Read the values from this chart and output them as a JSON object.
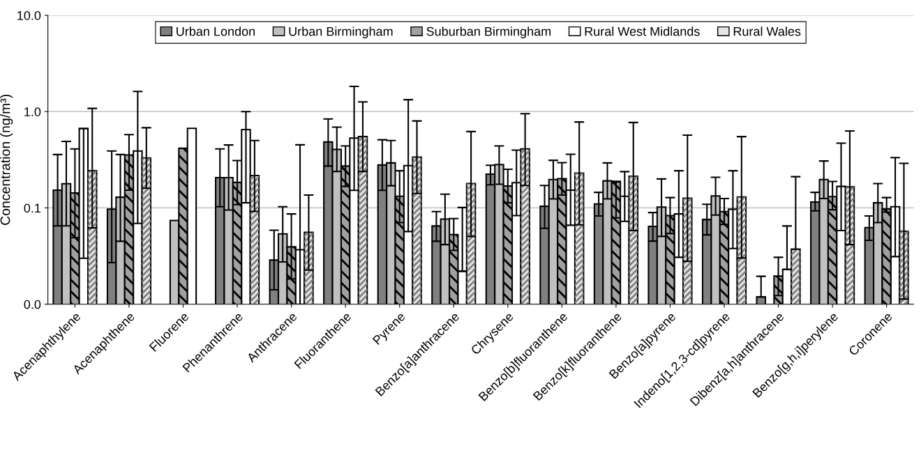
{
  "chart_data": {
    "type": "bar",
    "log": "y",
    "ylabel": "Concentration (ng/m³)",
    "categories": [
      "Acenaphthylene",
      "Acenaphthene",
      "Fluorene",
      "Phenanthrene",
      "Anthracene",
      "Fluoranthene",
      "Pyrene",
      "Benzo[a]anthracene",
      "Chrysene",
      "Benzo[b]fluoranthene",
      "Benzo[k]fluoranthene",
      "Benzo[a]pyrene",
      "Indeno[1,2,3-cd]pyrene",
      "Dibenz[a,h]anthracene",
      "Benzo[g,h,i]perylene",
      "Coronene"
    ],
    "ylim": [
      0.01,
      10
    ],
    "yticks": [
      {
        "value": 0.01,
        "label": "0.0"
      },
      {
        "value": 0.1,
        "label": "0.1"
      },
      {
        "value": 1,
        "label": "1.0"
      },
      {
        "value": 10,
        "label": "10.0"
      }
    ],
    "grid": "y",
    "legend": "top",
    "series": [
      {
        "name": "Urban London",
        "color": "#808080",
        "values": [
          0.153,
          0.097,
          null,
          0.206,
          0.0287,
          0.483,
          0.279,
          0.0649,
          0.224,
          0.104,
          0.11,
          0.0642,
          0.0758,
          0.0119,
          0.115,
          0.0624
        ],
        "errors": [
          [
            0.065,
            0.358
          ],
          [
            0.027,
            0.39
          ],
          null,
          [
            0.103,
            0.41
          ],
          [
            0.0141,
            0.0587
          ],
          [
            0.272,
            0.84
          ],
          [
            0.152,
            0.51
          ],
          [
            0.045,
            0.0915
          ],
          [
            0.174,
            0.277
          ],
          [
            0.0614,
            0.171
          ],
          [
            0.0824,
            0.145
          ],
          [
            0.0452,
            0.0895
          ],
          [
            0.0525,
            0.109
          ],
          [
            0.0119,
            0.0195
          ],
          [
            0.093,
            0.145
          ],
          [
            0.046,
            0.0824
          ]
        ]
      },
      {
        "name": "Urban Birmingham",
        "color": "#c0c0c0",
        "values": [
          0.178,
          0.129,
          0.074,
          0.206,
          0.0537,
          0.405,
          0.293,
          0.0766,
          0.282,
          0.197,
          0.191,
          0.102,
          0.133,
          null,
          0.197,
          0.113
        ],
        "errors": [
          [
            0.065,
            0.49
          ],
          [
            0.045,
            0.358
          ],
          null,
          [
            0.095,
            0.45
          ],
          [
            0.0275,
            0.103
          ],
          [
            0.239,
            0.69
          ],
          [
            0.17,
            0.5
          ],
          [
            0.0416,
            0.139
          ],
          [
            0.176,
            0.44
          ],
          [
            0.124,
            0.312
          ],
          [
            0.124,
            0.293
          ],
          [
            0.0506,
            0.2
          ],
          [
            0.0842,
            0.208
          ],
          null,
          [
            0.125,
            0.307
          ],
          [
            0.0705,
            0.179
          ]
        ]
      },
      {
        "name": "Suburban Birmingham",
        "color": "#a0a0a0",
        "values": [
          0.143,
          0.354,
          0.416,
          0.184,
          0.0394,
          0.272,
          0.132,
          0.0528,
          0.169,
          0.201,
          0.186,
          0.0833,
          0.0915,
          0.0196,
          0.131,
          0.0973
        ],
        "errors": [
          [
            0.049,
            0.41
          ],
          [
            0.153,
            0.577
          ],
          null,
          [
            0.108,
            0.31
          ],
          [
            0.0183,
            0.0866
          ],
          [
            0.167,
            0.44
          ],
          [
            0.0705,
            0.243
          ],
          [
            0.0362,
            0.0775
          ],
          [
            0.113,
            0.252
          ],
          [
            0.136,
            0.295
          ],
          [
            0.0788,
            0.189
          ],
          [
            0.0543,
            0.128
          ],
          [
            0.0674,
            0.125
          ],
          [
            0.0123,
            0.0307
          ],
          [
            0.0957,
            0.188
          ],
          [
            0.0905,
            0.128
          ]
        ]
      },
      {
        "name": "Rural West Midlands",
        "color": "#ffffff",
        "values": [
          0.667,
          0.39,
          0.67,
          0.65,
          0.0368,
          0.53,
          0.275,
          0.022,
          0.183,
          0.153,
          0.132,
          0.0866,
          0.0968,
          0.023,
          0.167,
          0.103
        ],
        "errors": [
          [
            0.03,
            0.667
          ],
          [
            0.069,
            1.62
          ],
          null,
          [
            0.113,
            1.0
          ],
          [
            0.01,
            0.452
          ],
          [
            0.152,
            1.83
          ],
          [
            0.0568,
            1.33
          ],
          [
            0.022,
            0.101
          ],
          [
            0.0833,
            0.398
          ],
          [
            0.066,
            0.36
          ],
          [
            0.0725,
            0.238
          ],
          [
            0.0307,
            0.243
          ],
          [
            0.0379,
            0.243
          ],
          [
            0.023,
            0.0649
          ],
          [
            0.0581,
            0.47
          ],
          [
            0.0312,
            0.333
          ]
        ]
      },
      {
        "name": "Rural Wales",
        "color": "#e6e6e6",
        "values": [
          0.243,
          0.33,
          null,
          0.217,
          0.0558,
          0.55,
          0.337,
          0.179,
          0.41,
          0.23,
          0.213,
          0.126,
          0.13,
          0.0372,
          0.165,
          0.0571
        ],
        "errors": [
          [
            0.062,
            1.08
          ],
          [
            0.16,
            0.68
          ],
          null,
          [
            0.092,
            0.5
          ],
          [
            0.0226,
            0.136
          ],
          [
            0.239,
            1.26
          ],
          [
            0.141,
            0.8
          ],
          [
            0.0506,
            0.62
          ],
          [
            0.171,
            0.95
          ],
          [
            0.0667,
            0.78
          ],
          [
            0.0581,
            0.77
          ],
          [
            0.0279,
            0.57
          ],
          [
            0.0302,
            0.55
          ],
          [
            0.0372,
            0.211
          ],
          [
            0.0416,
            0.63
          ],
          [
            0.0113,
            0.29
          ]
        ]
      }
    ]
  }
}
